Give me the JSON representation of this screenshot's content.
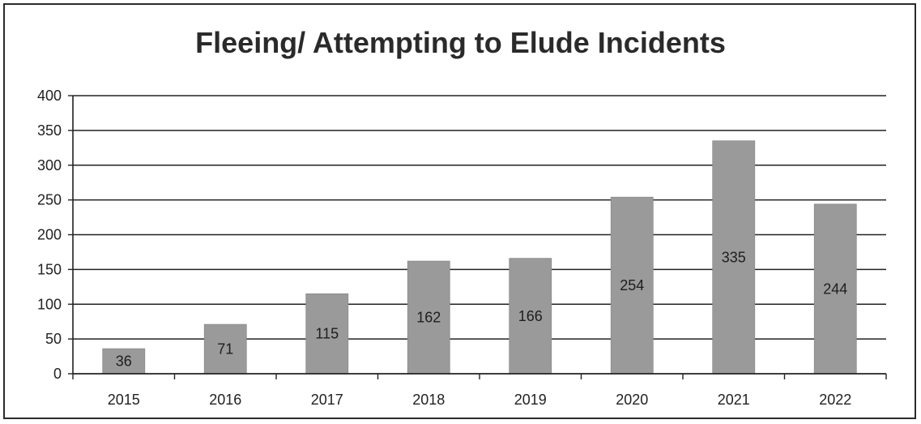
{
  "chart_data": {
    "type": "bar",
    "title": "Fleeing/ Attempting to Elude Incidents",
    "xlabel": "",
    "ylabel": "",
    "categories": [
      "2015",
      "2016",
      "2017",
      "2018",
      "2019",
      "2020",
      "2021",
      "2022"
    ],
    "values": [
      36,
      71,
      115,
      162,
      166,
      254,
      335,
      244
    ],
    "data_labels": [
      "36",
      "71",
      "115",
      "162",
      "166",
      "254",
      "335",
      "244"
    ],
    "ylim": [
      0,
      400
    ],
    "yticks": [
      0,
      50,
      100,
      150,
      200,
      250,
      300,
      350,
      400
    ],
    "ytick_labels": [
      "0",
      "50",
      "100",
      "150",
      "200",
      "250",
      "300",
      "350",
      "400"
    ],
    "grid": true,
    "legend": "none",
    "bar_color": "#9a9a9a",
    "gridline_color": "#222222"
  }
}
